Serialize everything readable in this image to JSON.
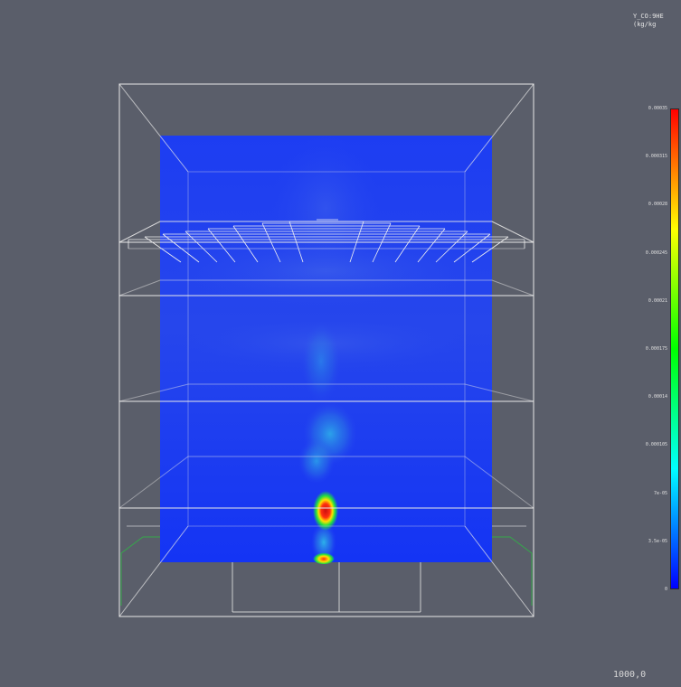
{
  "legend": {
    "title_line1": "Y_CO:9HE",
    "title_line2": "(kg/kg",
    "colormap_stops": [
      "#0000ff",
      "#00ffff",
      "#00ff00",
      "#ffff00",
      "#ff0000"
    ],
    "ticks": [
      {
        "value": 0.00035,
        "label": "0.00035"
      },
      {
        "value": 0.000315,
        "label": "0.000315"
      },
      {
        "value": 0.00028,
        "label": "0.00028"
      },
      {
        "value": 0.000245,
        "label": "0.000245"
      },
      {
        "value": 0.00021,
        "label": "0.00021"
      },
      {
        "value": 0.000175,
        "label": "0.000175"
      },
      {
        "value": 0.00014,
        "label": "0.00014"
      },
      {
        "value": 0.000105,
        "label": "0.000105"
      },
      {
        "value": 7e-05,
        "label": "7e-05"
      },
      {
        "value": 3.5e-05,
        "label": "3.5e-05"
      },
      {
        "value": 0,
        "label": "0"
      }
    ],
    "range": [
      0,
      0.00035
    ]
  },
  "scene": {
    "field_base_color": "#1f3ff0",
    "wireframe_color": "#e8e8e8",
    "wireframe_accent": "#35a84a"
  },
  "time_readout": "1000,0"
}
